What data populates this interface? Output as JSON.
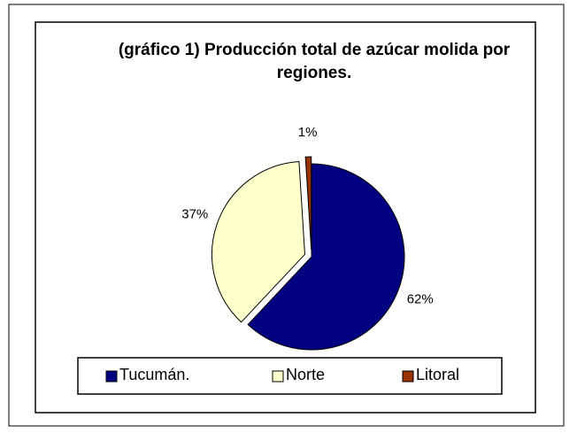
{
  "chart_data": {
    "type": "pie",
    "title": "(gráfico 1) Producción total de azúcar molida por regiones.",
    "categories": [
      "Tucumán.",
      "Norte",
      "Litoral"
    ],
    "values": [
      62,
      37,
      1
    ],
    "value_labels": [
      "62%",
      "37%",
      "1%"
    ],
    "colors": [
      "#000080",
      "#ffffcc",
      "#993300"
    ],
    "legend": "bottom"
  }
}
